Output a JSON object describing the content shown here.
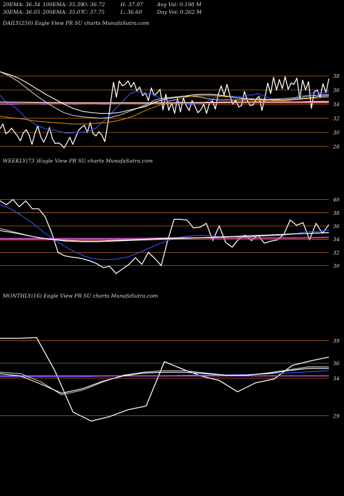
{
  "stats": {
    "ema20": "20EMA: 36.34",
    "ema100": "100EMA: 35.39",
    "open": "O: 36.72",
    "high": "H: 37.97",
    "avgvol": "Avg Vol: 0.198 M",
    "ema30": "30EMA: 36.05",
    "ema200": "200EMA: 35.07",
    "close": "C: 37.75",
    "low": "L: 36.60",
    "dayvol": "Day Vol: 0.262 M"
  },
  "chart_data": [
    {
      "type": "line",
      "label": "DAILY(250) Eagle  View  PR                SU charts MunafaSutra.com",
      "ylim": [
        26.5,
        39
      ],
      "yticks": [
        38,
        36,
        34,
        32,
        30,
        28
      ],
      "hlines": [
        38,
        36,
        34,
        32,
        30,
        28
      ],
      "series": [
        {
          "color": "#ffffff",
          "values": [
            30.5,
            31.2,
            29.8,
            30.1,
            30.6,
            30.0,
            29.5,
            28.8,
            29.9,
            30.4,
            29.6,
            28.3,
            29.9,
            30.9,
            29.4,
            28.6,
            29.5,
            30.7,
            29.1,
            28.4,
            28.5,
            28.3,
            27.8,
            28.5,
            29.3,
            28.3,
            29.3,
            30.3,
            30.7,
            31.0,
            30.0,
            31.4,
            29.8,
            29.5,
            30.1,
            29.6,
            28.7,
            31.1,
            34.2,
            37.1,
            35.0,
            37.3,
            36.6,
            36.8,
            37.3,
            36.4,
            37.1,
            35.9,
            36.4,
            35.2,
            35.6,
            34.5,
            36.3,
            35.2,
            35.6,
            36.1,
            33.2,
            35.4,
            33.1,
            34.2,
            32.7,
            34.8,
            32.9,
            34.9,
            33.8,
            33.1,
            34.5,
            33.7,
            32.8,
            33.2,
            34.0,
            32.7,
            34.2,
            34.5,
            33.3,
            35.4,
            36.6,
            35.3,
            36.8,
            35.2,
            34.0,
            34.6,
            33.6,
            33.8,
            35.8,
            34.5,
            33.8,
            33.9,
            34.7,
            35.1,
            33.1,
            34.9,
            37.0,
            35.5,
            37.8,
            36.0,
            37.5,
            36.2,
            37.9,
            36.1,
            37.0,
            36.8,
            37.7,
            34.8,
            37.4,
            36.0,
            37.2,
            33.4,
            35.8,
            36.0,
            35.0,
            36.9,
            35.6,
            37.6
          ]
        },
        {
          "color": "#3355ff",
          "values": [
            35.3,
            34.4,
            34.0,
            33.5,
            32.9,
            32.1,
            31.6,
            31.1,
            30.8,
            30.5,
            30.4,
            30.3,
            30.1,
            29.9,
            29.9,
            30.0,
            30.0,
            30.1,
            30.3,
            30.6,
            31.3,
            31.9,
            32.7,
            33.5,
            34.1,
            35.0,
            35.6,
            35.8,
            35.7,
            35.5,
            35.4,
            35.1,
            34.6,
            34.5,
            34.5,
            34.5,
            34.2,
            34.0,
            33.9,
            34.1,
            34.1,
            34.4,
            34.8,
            35.0,
            35.1,
            35.1,
            35.1,
            35.1,
            35.0,
            35.3,
            35.3,
            35.5,
            35.2,
            34.9,
            34.7,
            34.7,
            34.5,
            34.5,
            34.6,
            35.3,
            35.2,
            35.3,
            35.7,
            35.7,
            35.6,
            35.8
          ]
        },
        {
          "color": "#ff66ff",
          "values": [
            34.0,
            34.0,
            34.1,
            34.0,
            34.1,
            34.0,
            34.1,
            34.0,
            34.1,
            34.1,
            34.1,
            34.1,
            34.2,
            34.2,
            34.2,
            34.3,
            34.3,
            34.3,
            34.3,
            34.3,
            34.3,
            34.4,
            34.4
          ]
        },
        {
          "color": "#ff3333",
          "values": [
            34.1,
            34.1,
            34.1,
            34.2,
            34.2
          ]
        },
        {
          "color": "#ffffff",
          "values": [
            34.3,
            34.2,
            34.2,
            34.3,
            34.3
          ]
        },
        {
          "color": "#cccccc",
          "values": [
            38.6,
            38.0,
            37.2,
            36.2,
            35.2,
            34.3,
            33.5,
            32.8,
            32.4,
            32.2,
            32.1,
            32.0,
            32.1,
            32.4,
            32.9,
            33.4,
            33.9,
            34.6,
            34.9,
            35.0,
            35.1,
            35.1,
            35.0,
            34.7,
            34.6,
            34.6,
            34.6,
            34.6,
            34.7,
            34.6,
            34.7,
            34.8,
            34.9,
            35.0,
            35.2,
            35.3,
            35.4
          ]
        },
        {
          "color": "#ffffff",
          "values": [
            38.6,
            38.2,
            37.7,
            37.0,
            36.2,
            35.4,
            34.7,
            34.0,
            33.4,
            33.0,
            32.8,
            32.7,
            32.7,
            32.8,
            33.1,
            33.4,
            33.7,
            34.3,
            34.7,
            34.9,
            35.1,
            35.3,
            35.4,
            35.4,
            35.3,
            35.1,
            34.9,
            34.8,
            34.7,
            34.7,
            34.6,
            34.6,
            34.7,
            34.8,
            34.9,
            35.1,
            35.2
          ]
        },
        {
          "color": "#cc8800",
          "values": [
            32.3,
            32.1,
            32.0,
            31.8,
            31.6,
            31.5,
            31.4,
            31.3,
            31.2,
            31.2,
            31.2,
            31.3,
            31.4,
            31.6,
            31.9,
            32.3,
            32.9,
            33.4,
            33.9,
            34.4,
            34.8,
            35.0,
            35.2,
            35.2,
            35.2,
            35.1,
            35.0,
            34.8,
            34.6,
            34.5,
            34.5,
            34.5,
            34.5,
            34.6,
            34.7,
            34.8,
            34.9,
            35.0
          ]
        }
      ]
    },
    {
      "type": "line",
      "label": "WEEKLY(73                )Eagle  View  PR          SU charts MunafaSutra.com",
      "ylim": [
        28.5,
        41
      ],
      "yticks": [
        40,
        38,
        36,
        34,
        32,
        30
      ],
      "hlines": [
        40,
        38,
        36,
        34,
        32,
        30
      ],
      "series": [
        {
          "color": "#ffffff",
          "values": [
            39.8,
            39.2,
            40.0,
            38.9,
            39.8,
            38.6,
            38.6,
            37.4,
            35.0,
            32.0,
            31.5,
            31.3,
            31.2,
            31.0,
            30.7,
            30.3,
            29.7,
            29.9,
            28.8,
            29.5,
            30.2,
            31.2,
            30.2,
            32.0,
            31.1,
            30.0,
            33.8,
            37.0,
            37.0,
            36.9,
            35.7,
            35.8,
            36.4,
            33.8,
            36.0,
            33.5,
            32.8,
            34.0,
            34.6,
            33.8,
            34.6,
            33.4,
            33.7,
            33.9,
            34.7,
            36.9,
            36.1,
            36.5,
            33.9,
            36.4,
            34.9,
            36.2
          ]
        },
        {
          "color": "#3355ff",
          "values": [
            39.2,
            38.6,
            37.6,
            36.5,
            35.2,
            34.0,
            33.0,
            32.1,
            31.4,
            31.0,
            30.9,
            31.0,
            31.3,
            31.9,
            32.6,
            33.3,
            33.9,
            34.3,
            34.5,
            34.6,
            34.5,
            34.3,
            34.2,
            34.3,
            34.4,
            34.6,
            34.7,
            34.8,
            34.9,
            35.1,
            35.2,
            35.4
          ]
        },
        {
          "color": "#ff66ff",
          "values": [
            34.1,
            34.1,
            34.1,
            34.1,
            34.1,
            34.2,
            34.2,
            34.2,
            34.2,
            34.2,
            34.3
          ]
        },
        {
          "color": "#ff3333",
          "values": [
            33.9,
            33.9,
            34.0,
            34.0
          ]
        },
        {
          "color": "#cccccc",
          "values": [
            35.6,
            35.0,
            34.4,
            34.0,
            33.7,
            33.6,
            33.6,
            33.7,
            33.8,
            33.9,
            34.0,
            34.1,
            34.2,
            34.3,
            34.4,
            34.4,
            34.5,
            34.6,
            34.8,
            34.9,
            35.0
          ]
        },
        {
          "color": "#ffffff",
          "values": [
            35.3,
            34.9,
            34.4,
            34.0,
            33.8,
            33.7,
            33.7,
            33.8,
            33.9,
            34.0,
            34.1,
            34.2,
            34.2,
            34.3,
            34.4,
            34.5,
            34.6,
            34.7,
            34.8,
            34.9,
            35.0
          ]
        }
      ]
    },
    {
      "type": "line",
      "label": "MONTHLY(16) Eagle  View  PR          SU charts MunafaSutra.com",
      "ylim": [
        27.5,
        40.5
      ],
      "yticks": [
        39,
        36,
        34,
        29
      ],
      "hlines": [
        39,
        36,
        34,
        29
      ],
      "series": [
        {
          "color": "#ffffff",
          "values": [
            39.3,
            39.3,
            39.4,
            35.0,
            29.5,
            28.3,
            28.9,
            29.8,
            30.3,
            36.2,
            35.2,
            34.3,
            33.7,
            32.2,
            33.4,
            33.9,
            35.7,
            36.3,
            36.8
          ]
        },
        {
          "color": "#3355ff",
          "values": [
            34.2,
            34.2,
            34.2,
            34.2,
            34.3,
            34.3,
            34.3,
            34.4,
            34.4,
            34.5,
            34.6,
            34.8,
            35.0
          ]
        },
        {
          "color": "#ff66ff",
          "values": [
            34.3,
            34.3,
            34.3,
            34.3,
            34.3,
            34.3,
            34.3,
            34.3
          ]
        },
        {
          "color": "#cccccc",
          "values": [
            34.8,
            34.6,
            33.5,
            31.8,
            32.4,
            33.5,
            34.4,
            34.8,
            35.0,
            35.0,
            34.7,
            34.4,
            34.4,
            34.7,
            35.1,
            35.5,
            35.5
          ]
        },
        {
          "color": "#ffffff",
          "values": [
            34.6,
            34.3,
            33.2,
            32.0,
            32.6,
            33.6,
            34.3,
            34.7,
            34.8,
            34.8,
            34.6,
            34.4,
            34.4,
            34.6,
            35.0,
            35.3,
            35.3
          ]
        }
      ]
    }
  ]
}
